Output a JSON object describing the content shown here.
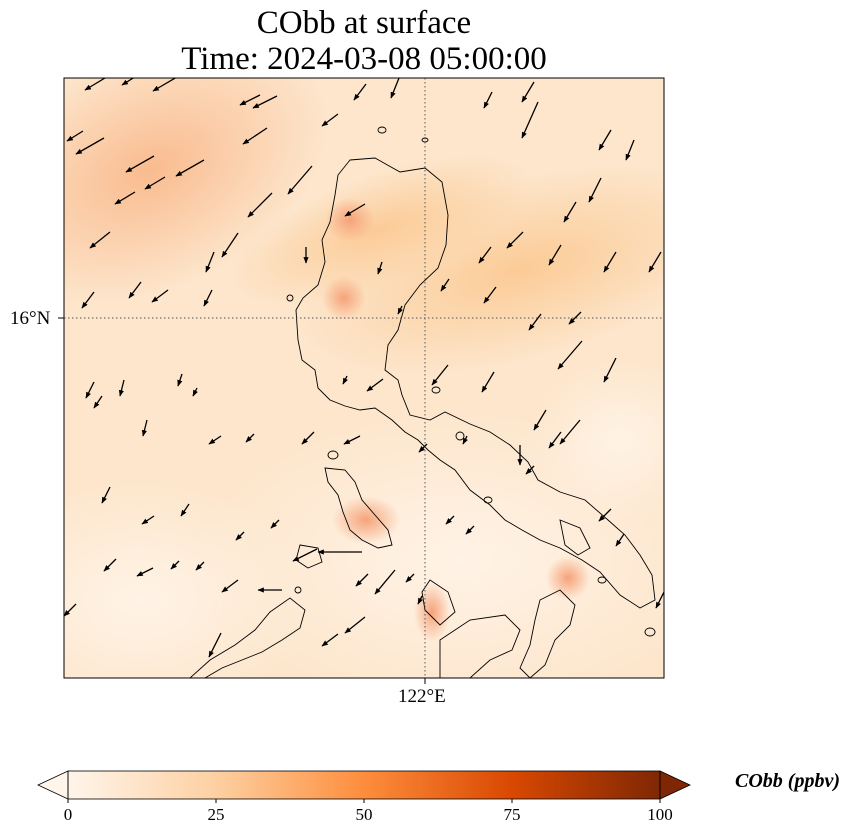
{
  "title_line1": "CObb at surface",
  "title_line2": "Time: 2024-03-08 05:00:00",
  "lat_tick": "16°N",
  "lon_tick": "122°E",
  "colorbar": {
    "label": "CObb (ppbv)",
    "ticks": [
      "0",
      "25",
      "50",
      "75",
      "100"
    ],
    "min": 0,
    "max": 100,
    "colormap": "Oranges",
    "extend": "both"
  },
  "map": {
    "gridlines": "dotted",
    "coastline_color": "#000000",
    "quiver_color": "#000000",
    "background_fill": "#fde6cc"
  }
}
